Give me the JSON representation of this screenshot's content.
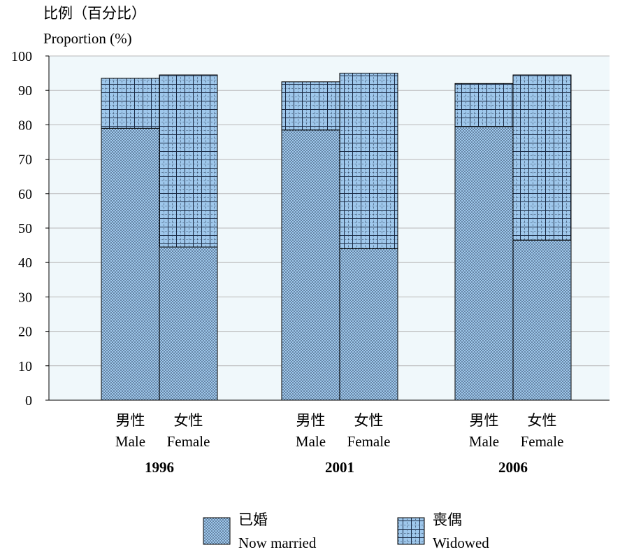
{
  "colors": {
    "plot_background": "#f0f8fb",
    "bar_fill": "#9fc8ec",
    "pattern_ink": "#1a2a44",
    "gridline": "#b9b9b9"
  },
  "chart_data": {
    "type": "bar",
    "stacked": true,
    "y_axis_title_cn": "比例（百分比）",
    "y_axis_title_en": "Proportion (%)",
    "ylim": [
      0,
      100
    ],
    "yticks": [
      0,
      10,
      20,
      30,
      40,
      50,
      60,
      70,
      80,
      90,
      100
    ],
    "grid": true,
    "legend_position": "bottom",
    "groups": [
      {
        "year": "1996",
        "bars": [
          {
            "label_cn": "男性",
            "label_en": "Male",
            "now_married": 79,
            "widowed": 14.5
          },
          {
            "label_cn": "女性",
            "label_en": "Female",
            "now_married": 44.5,
            "widowed": 50
          }
        ]
      },
      {
        "year": "2001",
        "bars": [
          {
            "label_cn": "男性",
            "label_en": "Male",
            "now_married": 78.5,
            "widowed": 14
          },
          {
            "label_cn": "女性",
            "label_en": "Female",
            "now_married": 44,
            "widowed": 51
          }
        ]
      },
      {
        "year": "2006",
        "bars": [
          {
            "label_cn": "男性",
            "label_en": "Male",
            "now_married": 79.5,
            "widowed": 12.5
          },
          {
            "label_cn": "女性",
            "label_en": "Female",
            "now_married": 46.5,
            "widowed": 48
          }
        ]
      }
    ],
    "series": [
      {
        "key": "now_married",
        "name_cn": "已婚",
        "name_en": "Now married",
        "pattern": "dots"
      },
      {
        "key": "widowed",
        "name_cn": "喪偶",
        "name_en": "Widowed",
        "pattern": "grid"
      }
    ]
  }
}
